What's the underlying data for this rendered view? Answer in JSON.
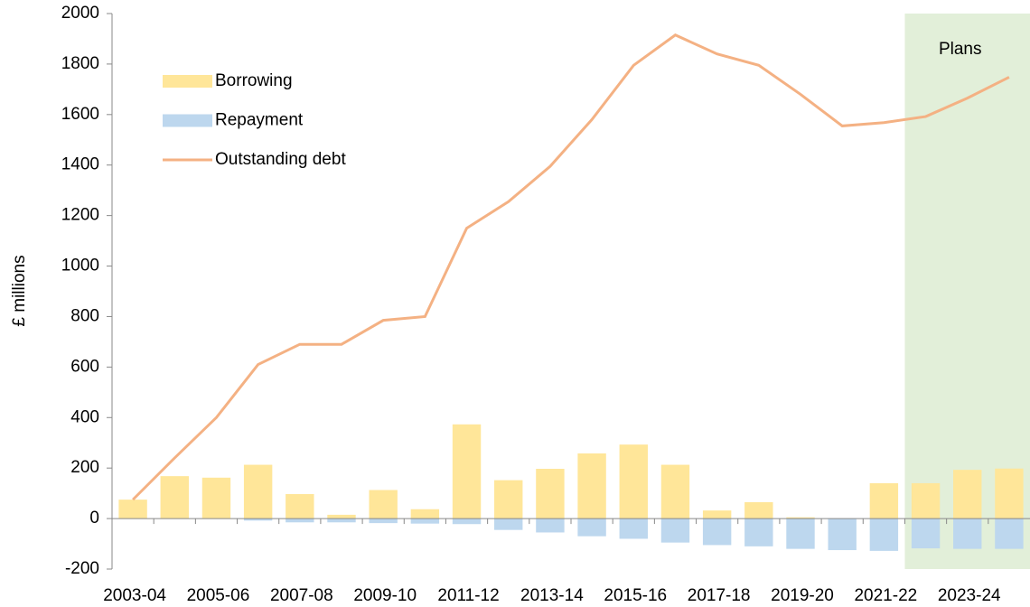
{
  "chart_data": {
    "type": "bar_line",
    "ylabel": "£ millions",
    "categories": [
      "2003-04",
      null,
      "2005-06",
      null,
      "2007-08",
      null,
      "2009-10",
      null,
      "2011-12",
      null,
      "2013-14",
      null,
      "2015-16",
      null,
      "2017-18",
      null,
      "2019-20",
      null,
      "2021-22",
      null,
      "2023-24",
      null
    ],
    "series": [
      {
        "name": "Borrowing",
        "kind": "bar",
        "color": "#ffe699",
        "values": [
          75,
          168,
          162,
          213,
          97,
          15,
          113,
          37,
          373,
          152,
          197,
          258,
          293,
          213,
          32,
          65,
          5,
          0,
          140,
          140,
          193,
          198
        ]
      },
      {
        "name": "Repayment",
        "kind": "bar",
        "color": "#bdd7ee",
        "values": [
          0,
          0,
          0,
          -8,
          -15,
          -15,
          -18,
          -20,
          -22,
          -45,
          -55,
          -70,
          -80,
          -95,
          -105,
          -110,
          -120,
          -125,
          -128,
          -118,
          -120,
          -120
        ]
      },
      {
        "name": "Outstanding debt",
        "kind": "line",
        "color": "#f4b183",
        "values": [
          75,
          240,
          400,
          610,
          690,
          690,
          785,
          800,
          1150,
          1255,
          1395,
          1580,
          1795,
          1915,
          1840,
          1795,
          1680,
          1555,
          1568,
          1592,
          1665,
          1748
        ]
      }
    ],
    "shade": {
      "label": "Plans",
      "color": "#e2efd9",
      "start": 19
    },
    "ylim": [
      -200,
      2000
    ],
    "yticks": [
      -200,
      0,
      200,
      400,
      600,
      800,
      1000,
      1200,
      1400,
      1600,
      1800,
      2000
    ],
    "legend": "upper left"
  }
}
